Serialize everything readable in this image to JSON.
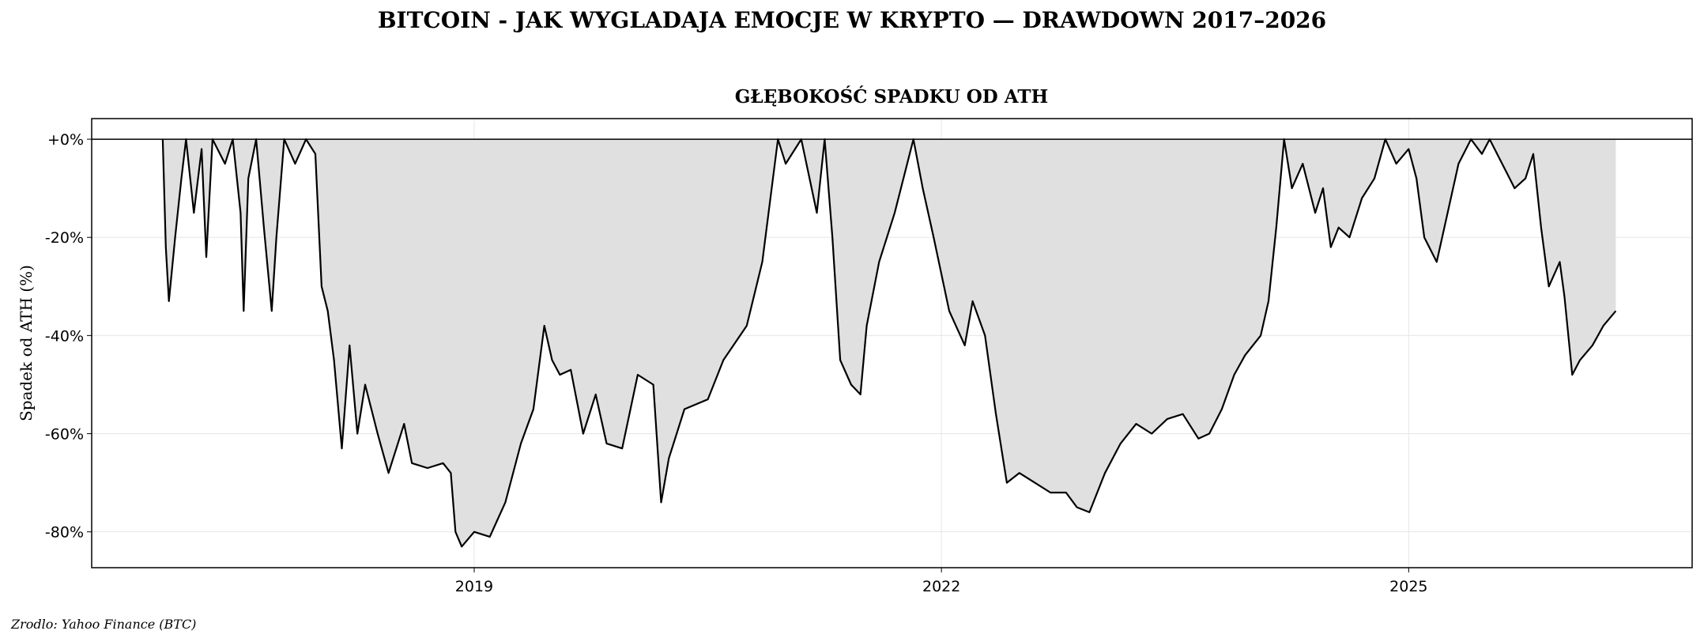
{
  "chart_data": {
    "type": "area",
    "title": "BITCOIN - JAK WYGLADAJA EMOCJE W KRYPTO — DRAWDOWN 2017–2026",
    "subtitle": "GŁĘBOKOŚĆ SPADKU OD ATH",
    "y_label": "Spadek od ATH (%)",
    "source": "Zrodlo: Yahoo Finance (BTC)",
    "x": [
      2017.0,
      2017.02,
      2017.04,
      2017.08,
      2017.12,
      2017.15,
      2017.2,
      2017.25,
      2017.28,
      2017.32,
      2017.4,
      2017.45,
      2017.5,
      2017.52,
      2017.55,
      2017.6,
      2017.65,
      2017.7,
      2017.73,
      2017.78,
      2017.85,
      2017.92,
      2017.98,
      2018.02,
      2018.06,
      2018.1,
      2018.15,
      2018.2,
      2018.25,
      2018.3,
      2018.38,
      2018.45,
      2018.55,
      2018.6,
      2018.7,
      2018.8,
      2018.85,
      2018.88,
      2018.92,
      2019.0,
      2019.1,
      2019.2,
      2019.3,
      2019.38,
      2019.45,
      2019.5,
      2019.55,
      2019.62,
      2019.7,
      2019.78,
      2019.85,
      2019.95,
      2020.05,
      2020.15,
      2020.2,
      2020.25,
      2020.35,
      2020.5,
      2020.6,
      2020.75,
      2020.85,
      2020.95,
      2021.0,
      2021.1,
      2021.2,
      2021.25,
      2021.3,
      2021.35,
      2021.42,
      2021.48,
      2021.52,
      2021.6,
      2021.7,
      2021.82,
      2021.88,
      2021.95,
      2022.05,
      2022.15,
      2022.2,
      2022.28,
      2022.35,
      2022.42,
      2022.5,
      2022.6,
      2022.7,
      2022.8,
      2022.87,
      2022.95,
      2023.05,
      2023.15,
      2023.25,
      2023.35,
      2023.45,
      2023.55,
      2023.65,
      2023.72,
      2023.8,
      2023.88,
      2023.95,
      2024.05,
      2024.1,
      2024.15,
      2024.2,
      2024.25,
      2024.32,
      2024.4,
      2024.45,
      2024.5,
      2024.55,
      2024.62,
      2024.7,
      2024.78,
      2024.85,
      2024.92,
      2025.0,
      2025.05,
      2025.1,
      2025.18,
      2025.25,
      2025.32,
      2025.4,
      2025.47,
      2025.52,
      2025.6,
      2025.68,
      2025.75,
      2025.8,
      2025.85,
      2025.9,
      2025.97,
      2026.0,
      2026.05,
      2026.1,
      2026.18,
      2026.25,
      2026.33
    ],
    "values": [
      0,
      -22,
      -33,
      -20,
      -8,
      0,
      -15,
      -2,
      -24,
      0,
      -5,
      0,
      -15,
      -35,
      -8,
      0,
      -18,
      -35,
      -20,
      0,
      -5,
      0,
      -3,
      -30,
      -35,
      -45,
      -63,
      -42,
      -60,
      -50,
      -60,
      -68,
      -58,
      -66,
      -67,
      -66,
      -68,
      -80,
      -83,
      -80,
      -81,
      -74,
      -62,
      -55,
      -38,
      -45,
      -48,
      -47,
      -60,
      -52,
      -62,
      -63,
      -48,
      -50,
      -74,
      -65,
      -55,
      -53,
      -45,
      -38,
      -25,
      0,
      -5,
      0,
      -15,
      0,
      -20,
      -45,
      -50,
      -52,
      -38,
      -25,
      -15,
      0,
      -10,
      -20,
      -35,
      -42,
      -33,
      -40,
      -56,
      -70,
      -68,
      -70,
      -72,
      -72,
      -75,
      -76,
      -68,
      -62,
      -58,
      -60,
      -57,
      -56,
      -61,
      -60,
      -55,
      -48,
      -44,
      -40,
      -33,
      -18,
      0,
      -10,
      -5,
      -15,
      -10,
      -22,
      -18,
      -20,
      -12,
      -8,
      0,
      -5,
      -2,
      -8,
      -20,
      -25,
      -15,
      -5,
      0,
      -3,
      0,
      -5,
      -10,
      -8,
      -3,
      -18,
      -30,
      -25,
      -32,
      -48,
      -45,
      -42,
      -38,
      -35
    ],
    "color": "#000000",
    "fill_color": "#e0e0e0",
    "xlim": [
      2016.544,
      2026.82
    ],
    "xticks": [
      2019,
      2022,
      2025
    ],
    "ylim": [
      -87.3,
      4.2
    ],
    "yticks": [
      {
        "value": 0,
        "label": "+0%"
      },
      {
        "value": -20,
        "label": "-20%"
      },
      {
        "value": -40,
        "label": "-40%"
      },
      {
        "value": -60,
        "label": "-60%"
      },
      {
        "value": -80,
        "label": "-80%"
      }
    ],
    "grid": true
  }
}
